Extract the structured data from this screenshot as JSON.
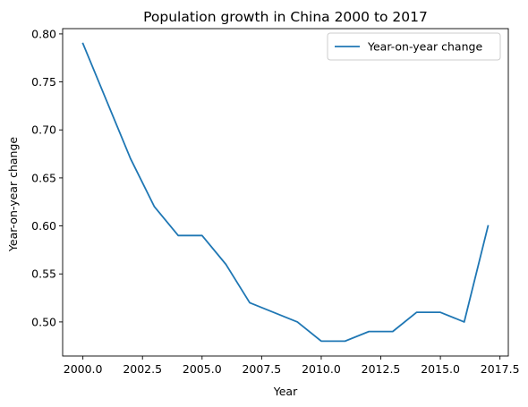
{
  "chart_data": {
    "type": "line",
    "title": "Population growth in China 2000 to 2017",
    "xlabel": "Year",
    "ylabel": "Year-on-year change",
    "xlim": [
      1999.15,
      2017.85
    ],
    "ylim": [
      0.4645,
      0.8055
    ],
    "xticks": [
      {
        "value": 2000.0,
        "label": "2000.0"
      },
      {
        "value": 2002.5,
        "label": "2002.5"
      },
      {
        "value": 2005.0,
        "label": "2005.0"
      },
      {
        "value": 2007.5,
        "label": "2007.5"
      },
      {
        "value": 2010.0,
        "label": "2010.0"
      },
      {
        "value": 2012.5,
        "label": "2012.5"
      },
      {
        "value": 2015.0,
        "label": "2015.0"
      },
      {
        "value": 2017.5,
        "label": "2017.5"
      }
    ],
    "yticks": [
      {
        "value": 0.5,
        "label": "0.50"
      },
      {
        "value": 0.55,
        "label": "0.55"
      },
      {
        "value": 0.6,
        "label": "0.60"
      },
      {
        "value": 0.65,
        "label": "0.65"
      },
      {
        "value": 0.7,
        "label": "0.70"
      },
      {
        "value": 0.75,
        "label": "0.75"
      },
      {
        "value": 0.8,
        "label": "0.80"
      }
    ],
    "grid": false,
    "legend_position": "top-right",
    "series": [
      {
        "name": "Year-on-year change",
        "color": "#1f77b4",
        "x": [
          2000,
          2001,
          2002,
          2003,
          2004,
          2005,
          2006,
          2007,
          2008,
          2009,
          2010,
          2011,
          2012,
          2013,
          2014,
          2015,
          2016,
          2017
        ],
        "y": [
          0.79,
          0.73,
          0.67,
          0.62,
          0.59,
          0.59,
          0.56,
          0.52,
          0.51,
          0.5,
          0.48,
          0.48,
          0.49,
          0.49,
          0.51,
          0.51,
          0.5,
          0.6
        ]
      }
    ]
  }
}
